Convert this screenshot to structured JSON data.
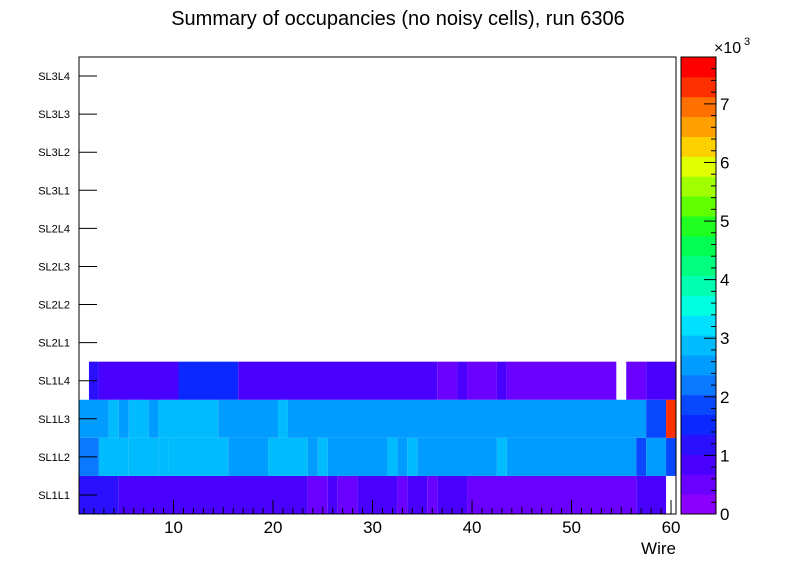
{
  "chart_data": {
    "type": "heatmap",
    "title": "Summary of occupancies (no noisy cells), run 6306",
    "xlabel": "Wire",
    "ylabel": "",
    "xlim": [
      0.5,
      60.5
    ],
    "x_ticks": [
      10,
      20,
      30,
      40,
      50,
      60
    ],
    "y_categories": [
      "SL1L1",
      "SL1L2",
      "SL1L3",
      "SL1L4",
      "SL2L1",
      "SL2L2",
      "SL2L3",
      "SL2L4",
      "SL3L1",
      "SL3L2",
      "SL3L3",
      "SL3L4"
    ],
    "z_range": [
      0,
      7.8
    ],
    "z_multiplier": "×10",
    "z_exponent": "3",
    "z_ticks": [
      0,
      1,
      2,
      3,
      4,
      5,
      6,
      7
    ],
    "rows": [
      {
        "layer": "SL1L1",
        "segments": [
          {
            "from": 1,
            "to": 4,
            "value": 1.35
          },
          {
            "from": 5,
            "to": 23,
            "value": 0.95
          },
          {
            "from": 24,
            "to": 25,
            "value": 0.6
          },
          {
            "from": 26,
            "to": 26,
            "value": 0.95
          },
          {
            "from": 27,
            "to": 28,
            "value": 0.6
          },
          {
            "from": 29,
            "to": 32,
            "value": 0.95
          },
          {
            "from": 33,
            "to": 33,
            "value": 0.6
          },
          {
            "from": 34,
            "to": 35,
            "value": 0.95
          },
          {
            "from": 36,
            "to": 36,
            "value": 0.6
          },
          {
            "from": 37,
            "to": 39,
            "value": 0.95
          },
          {
            "from": 40,
            "to": 56,
            "value": 0.6
          },
          {
            "from": 57,
            "to": 59,
            "value": 0.95
          }
        ]
      },
      {
        "layer": "SL1L2",
        "segments": [
          {
            "from": 1,
            "to": 2,
            "value": 2.25
          },
          {
            "from": 3,
            "to": 5,
            "value": 2.8
          },
          {
            "from": 6,
            "to": 8,
            "value": 3.05
          },
          {
            "from": 9,
            "to": 9,
            "value": 2.8
          },
          {
            "from": 10,
            "to": 15,
            "value": 3.05
          },
          {
            "from": 16,
            "to": 19,
            "value": 2.45
          },
          {
            "from": 20,
            "to": 23,
            "value": 3.05
          },
          {
            "from": 24,
            "to": 24,
            "value": 2.45
          },
          {
            "from": 25,
            "to": 25,
            "value": 3.05
          },
          {
            "from": 26,
            "to": 31,
            "value": 2.45
          },
          {
            "from": 32,
            "to": 32,
            "value": 3.05
          },
          {
            "from": 33,
            "to": 33,
            "value": 2.45
          },
          {
            "from": 34,
            "to": 34,
            "value": 3.05
          },
          {
            "from": 35,
            "to": 42,
            "value": 2.45
          },
          {
            "from": 43,
            "to": 43,
            "value": 3.05
          },
          {
            "from": 44,
            "to": 56,
            "value": 2.45
          },
          {
            "from": 57,
            "to": 57,
            "value": 1.85
          },
          {
            "from": 58,
            "to": 59,
            "value": 2.45
          },
          {
            "from": 60,
            "to": 60,
            "value": 1.85
          }
        ]
      },
      {
        "layer": "SL1L3",
        "segments": [
          {
            "from": 1,
            "to": 3,
            "value": 2.45
          },
          {
            "from": 4,
            "to": 4,
            "value": 2.8
          },
          {
            "from": 5,
            "to": 5,
            "value": 2.45
          },
          {
            "from": 6,
            "to": 7,
            "value": 3.05
          },
          {
            "from": 8,
            "to": 8,
            "value": 2.45
          },
          {
            "from": 9,
            "to": 14,
            "value": 3.05
          },
          {
            "from": 15,
            "to": 20,
            "value": 2.45
          },
          {
            "from": 21,
            "to": 21,
            "value": 3.05
          },
          {
            "from": 22,
            "to": 57,
            "value": 2.45
          },
          {
            "from": 58,
            "to": 59,
            "value": 1.85
          },
          {
            "from": 60,
            "to": 60,
            "value": 7.3
          }
        ]
      },
      {
        "layer": "SL1L4",
        "segments": [
          {
            "from": 2,
            "to": 2,
            "value": 1.35
          },
          {
            "from": 3,
            "to": 10,
            "value": 0.95
          },
          {
            "from": 11,
            "to": 16,
            "value": 1.6
          },
          {
            "from": 17,
            "to": 36,
            "value": 0.95
          },
          {
            "from": 37,
            "to": 38,
            "value": 0.6
          },
          {
            "from": 39,
            "to": 39,
            "value": 0.95
          },
          {
            "from": 40,
            "to": 42,
            "value": 0.6
          },
          {
            "from": 43,
            "to": 43,
            "value": 0.95
          },
          {
            "from": 44,
            "to": 54,
            "value": 0.6
          },
          {
            "from": 56,
            "to": 57,
            "value": 0.6
          },
          {
            "from": 58,
            "to": 60,
            "value": 0.95
          }
        ]
      }
    ]
  }
}
